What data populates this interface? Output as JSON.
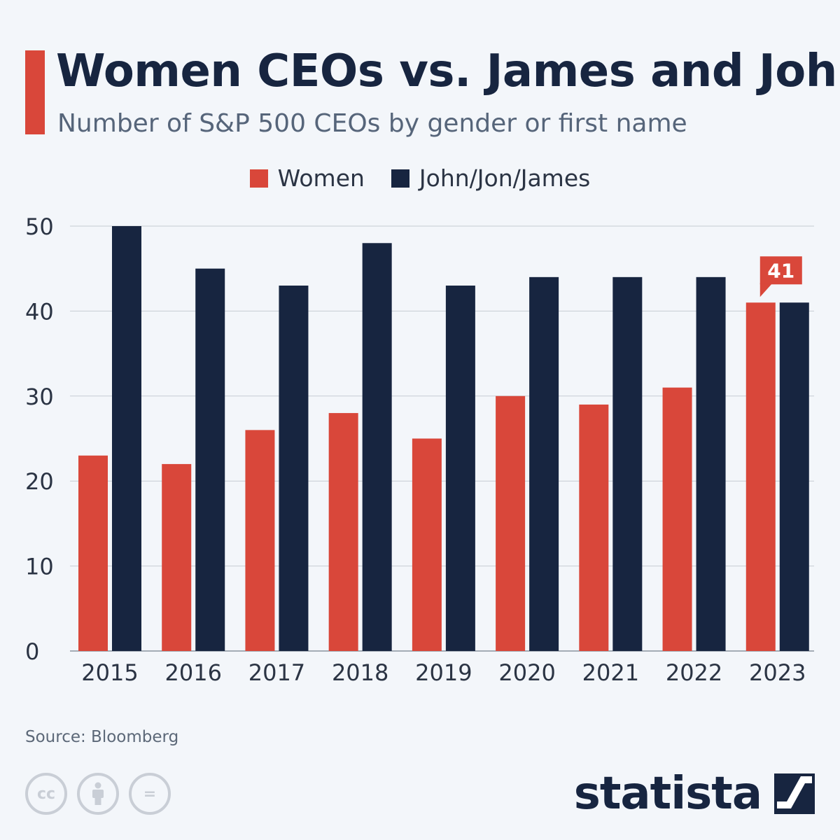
{
  "header": {
    "title": "Women CEOs vs. James and John",
    "subtitle": "Number of S&P 500 CEOs by gender or first name"
  },
  "colors": {
    "accent": "#d9473a",
    "navy": "#172540",
    "subtitle_text": "#56657a",
    "axis_text": "#2b3444",
    "grid": "#c6ccd3",
    "source_text": "#5c6878",
    "background": "#f3f6fa"
  },
  "legend": {
    "items": [
      {
        "label": "Women",
        "color": "#d9473a"
      },
      {
        "label": "John/Jon/James",
        "color": "#172540"
      }
    ]
  },
  "chart_data": {
    "type": "bar",
    "categories": [
      "2015",
      "2016",
      "2017",
      "2018",
      "2019",
      "2020",
      "2021",
      "2022",
      "2023"
    ],
    "series": [
      {
        "name": "Women",
        "color": "#d9473a",
        "values": [
          23,
          22,
          26,
          28,
          25,
          30,
          29,
          31,
          41
        ]
      },
      {
        "name": "John/Jon/James",
        "color": "#172540",
        "values": [
          50,
          45,
          43,
          48,
          43,
          44,
          44,
          44,
          41
        ]
      }
    ],
    "ylim": [
      0,
      50
    ],
    "yticks": [
      0,
      10,
      20,
      30,
      40,
      50
    ],
    "grid": true,
    "legend_position": "top-center",
    "annotations": [
      {
        "series": "Women",
        "category": "2023",
        "text": "41"
      }
    ]
  },
  "footer": {
    "source": "Source: Bloomberg",
    "license_icons": [
      {
        "icon": "cc-icon",
        "glyph": "cc"
      },
      {
        "icon": "attribution-icon",
        "glyph": ""
      },
      {
        "icon": "no-derivatives-icon",
        "glyph": "="
      }
    ],
    "brand": "statista",
    "brand_icon": "statista-logo-icon"
  }
}
